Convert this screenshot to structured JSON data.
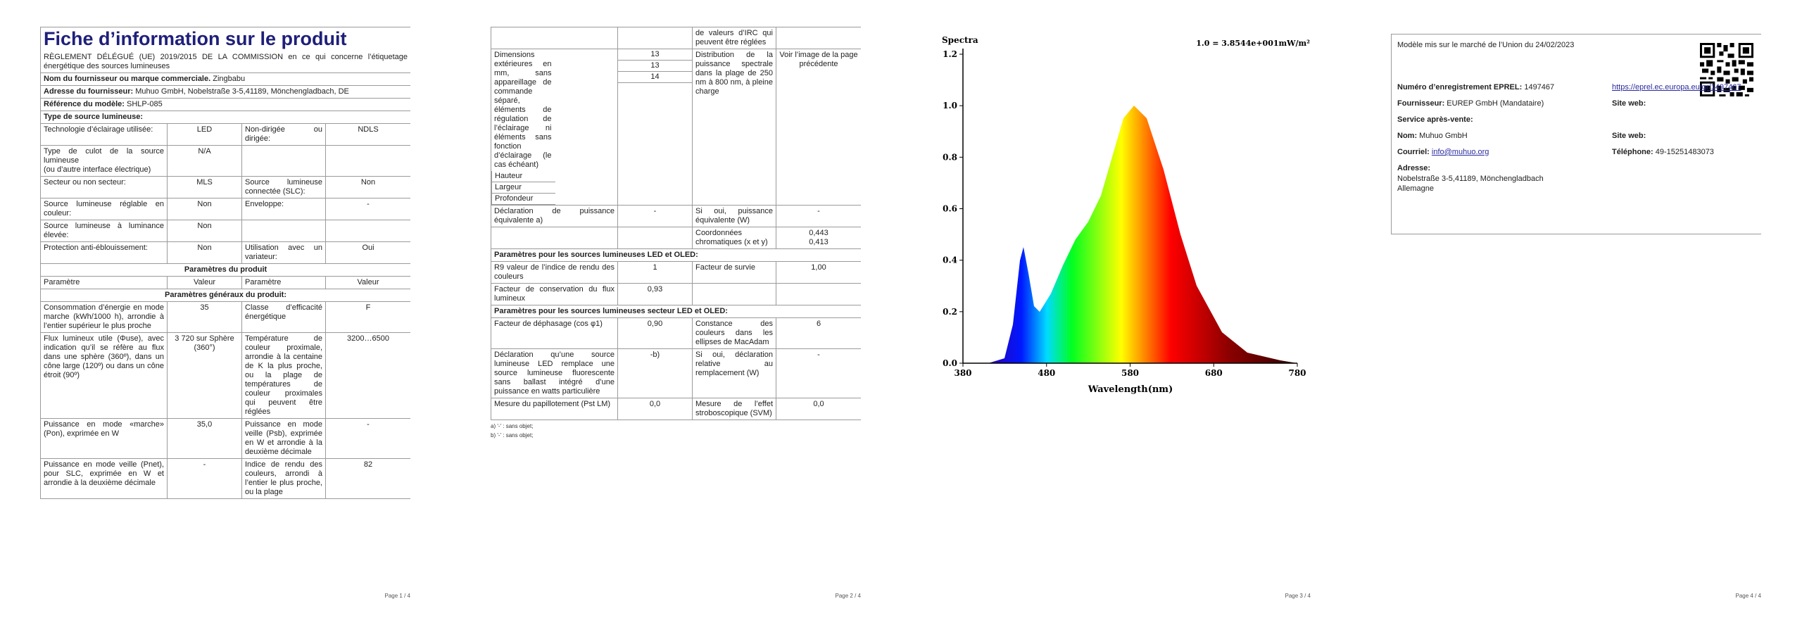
{
  "pages": [
    {
      "table": [
        {
          "title": "Fiche d’information sur le produit"
        },
        {
          "subtitle": "RÈGLEMENT DÉLÉGUÉ (UE) 2019/2015 DE LA COMMISSION en ce qui concerne l’étiquetage énergétique des sources lumineuses"
        },
        {
          "label": "Nom du fournisseur ou marque commerciale.",
          "value": "Zingbabu"
        },
        {
          "label": "Adresse du fournisseur:",
          "value": "Muhuo GmbH, Nobelstraße 3-5,41189, Mönchengladbach, DE"
        },
        {
          "label": "Référence du modèle:",
          "value": "SHLP-085"
        },
        {
          "heading": "Type de source lumineuse:"
        },
        {
          "cells": [
            "Technologie d’éclairage utilisée:",
            "LED",
            "Non-dirigée ou dirigée:",
            "NDLS"
          ]
        },
        {
          "cells": [
            [
              "Type de culot de la source lumineuse",
              "(ou d’autre interface électrique)"
            ],
            "N/A",
            null,
            null
          ]
        },
        {
          "cells": [
            "Secteur ou non secteur:",
            "MLS",
            "Source lumineuse connectée (SLC):",
            "Non"
          ]
        },
        {
          "cells": [
            "Source lumineuse réglable en couleur:",
            "Non",
            "Enveloppe:",
            "-"
          ]
        },
        {
          "cells": [
            "Source lumineuse à luminance élevée:",
            "Non",
            null,
            null
          ]
        },
        {
          "cells": [
            "Protection anti-éblouissement:",
            "Non",
            "Utilisation avec un variateur:",
            "Oui"
          ]
        },
        {
          "section": "Paramètres du produit"
        },
        {
          "cells": [
            "Paramètre",
            "Valeur",
            "Paramètre",
            "Valeur"
          ],
          "plain": true
        },
        {
          "section": "Paramètres généraux du produit:"
        },
        {
          "cells": [
            "Consommation d’énergie en mode marche (kWh/1000 h), arrondie à l’entier supérieur le plus proche",
            "35",
            "Classe d’efficacité énergétique",
            "F"
          ]
        },
        {
          "cells": [
            "Flux lumineux utile (Φuse), avec indication qu’il se réfère au flux dans une sphère (360º), dans un cône large (120º) ou dans un cône étroit (90º)",
            "3 720 sur Sphère (360°)",
            "Température de couleur proximale, arrondie à la centaine de K la plus proche, ou la plage de températures de couleur proximales qui peuvent être réglées",
            "3200…6500"
          ]
        },
        {
          "cells": [
            "Puissance en mode «marche» (Pon), exprimée en W",
            "35,0",
            "Puissance en mode veille (Psb), exprimée en W et arrondie à la deuxième décimale",
            "-"
          ]
        },
        {
          "cells": [
            "Puissance en mode veille (Pnet), pour SLC, exprimée en W et arrondie à la deuxième décimale",
            "-",
            "Indice de rendu des couleurs, arrondi à l’entier le plus proche, ou la plage",
            "82"
          ]
        }
      ],
      "footer": "Page 1 / 4"
    },
    {
      "table": [
        {
          "cells": [
            null,
            null,
            "de valeurs d’IRC qui peuvent être réglées",
            null
          ]
        },
        {
          "cells": [
            "Dimensions extérieures en mm, sans appareillage de commande séparé, éléments de régulation de l’éclairage ni éléments sans fonction d’éclairage (le cas échéant)",
            [
              {
                "name": "Hauteur",
                "value": 13
              },
              {
                "name": "Largeur",
                "value": 13
              },
              {
                "name": "Profondeur",
                "value": 14
              }
            ],
            "Distribution de la puissance spectrale dans la plage de 250 nm à 800 nm, à pleine charge",
            "Voir l’image de la page précédente"
          ]
        },
        {
          "cells": [
            "Déclaration de puissance équivalente a)",
            "-",
            "Si oui, puissance équivalente (W)",
            "-"
          ]
        },
        {
          "cells": [
            null,
            null,
            "Coordonnées chromatiques (x et y)",
            [
              "0,443",
              "0,413"
            ]
          ]
        },
        {
          "heading": "Paramètres pour les sources lumineuses LED et OLED:"
        },
        {
          "cells": [
            "R9 valeur de l’indice de rendu des couleurs",
            "1",
            "Facteur de survie",
            "1,00"
          ]
        },
        {
          "cells": [
            "Facteur de conservation du flux lumineux",
            "0,93",
            null,
            null
          ]
        },
        {
          "heading": "Paramètres pour les sources lumineuses secteur LED et OLED:"
        },
        {
          "cells": [
            "Facteur de déphasage (cos φ1)",
            "0,90",
            "Constance des couleurs dans les ellipses de MacAdam",
            "6"
          ]
        },
        {
          "cells": [
            "Déclaration qu’une source lumineuse LED remplace une source lumineuse fluorescente sans ballast intégré d’une puissance en watts particulière",
            "-b)",
            "Si oui, déclaration relative au remplacement (W)",
            "-"
          ]
        },
        {
          "cells": [
            "Mesure du papillotement (Pst LM)",
            "0,0",
            "Mesure de l’effet stroboscopique (SVM)",
            "0,0"
          ]
        }
      ],
      "notes": [
        "a) '-' : sans objet;",
        "b) '-' : sans objet;"
      ],
      "footer": "Page 2 / 4"
    },
    {
      "figure": {
        "title": "Spectra",
        "note": "1.0 = 3.8544e+001mW/m²",
        "x_label": "Wavelength(nm)",
        "xlim": [
          380,
          780
        ],
        "xticks": [
          380,
          480,
          580,
          680,
          780
        ],
        "ylim": [
          0,
          1.2
        ],
        "yticks": [
          {
            "value": 0,
            "label": "0.0"
          },
          0.2,
          0.4,
          0.6,
          0.8,
          {
            "value": 1,
            "label": "1.0"
          },
          1.2
        ]
      },
      "footer": "Page 3 / 4"
    },
    {
      "market": "Modèle mis sur le marché de l’Union du 24/02/2023",
      "rows": [
        [
          {
            "label": "Numéro d’enregistrement EPREL:",
            "value": "1497467"
          },
          {
            "link": "https://eprel.ec.europa.eu/qr/1497467"
          }
        ],
        [
          {
            "label": "Fournisseur:",
            "value": "EUREP GmbH (Mandataire)"
          },
          {
            "label": "Site web:"
          }
        ],
        [
          {
            "label": "Service après-vente:"
          }
        ],
        [
          {
            "label": "Nom:",
            "value": "Muhuo GmbH"
          },
          {
            "label": "Site web:"
          }
        ],
        [
          {
            "label": "Courriel:",
            "link": "info@muhuo.org"
          },
          {
            "label": "Téléphone:",
            "value": "49-15251483073"
          }
        ],
        [
          {
            "label": "Adresse:"
          }
        ]
      ],
      "address": [
        "Nobelstraße 3-5,41189, Mönchengladbach",
        "Allemagne"
      ],
      "footer": "Page 4 / 4"
    }
  ]
}
